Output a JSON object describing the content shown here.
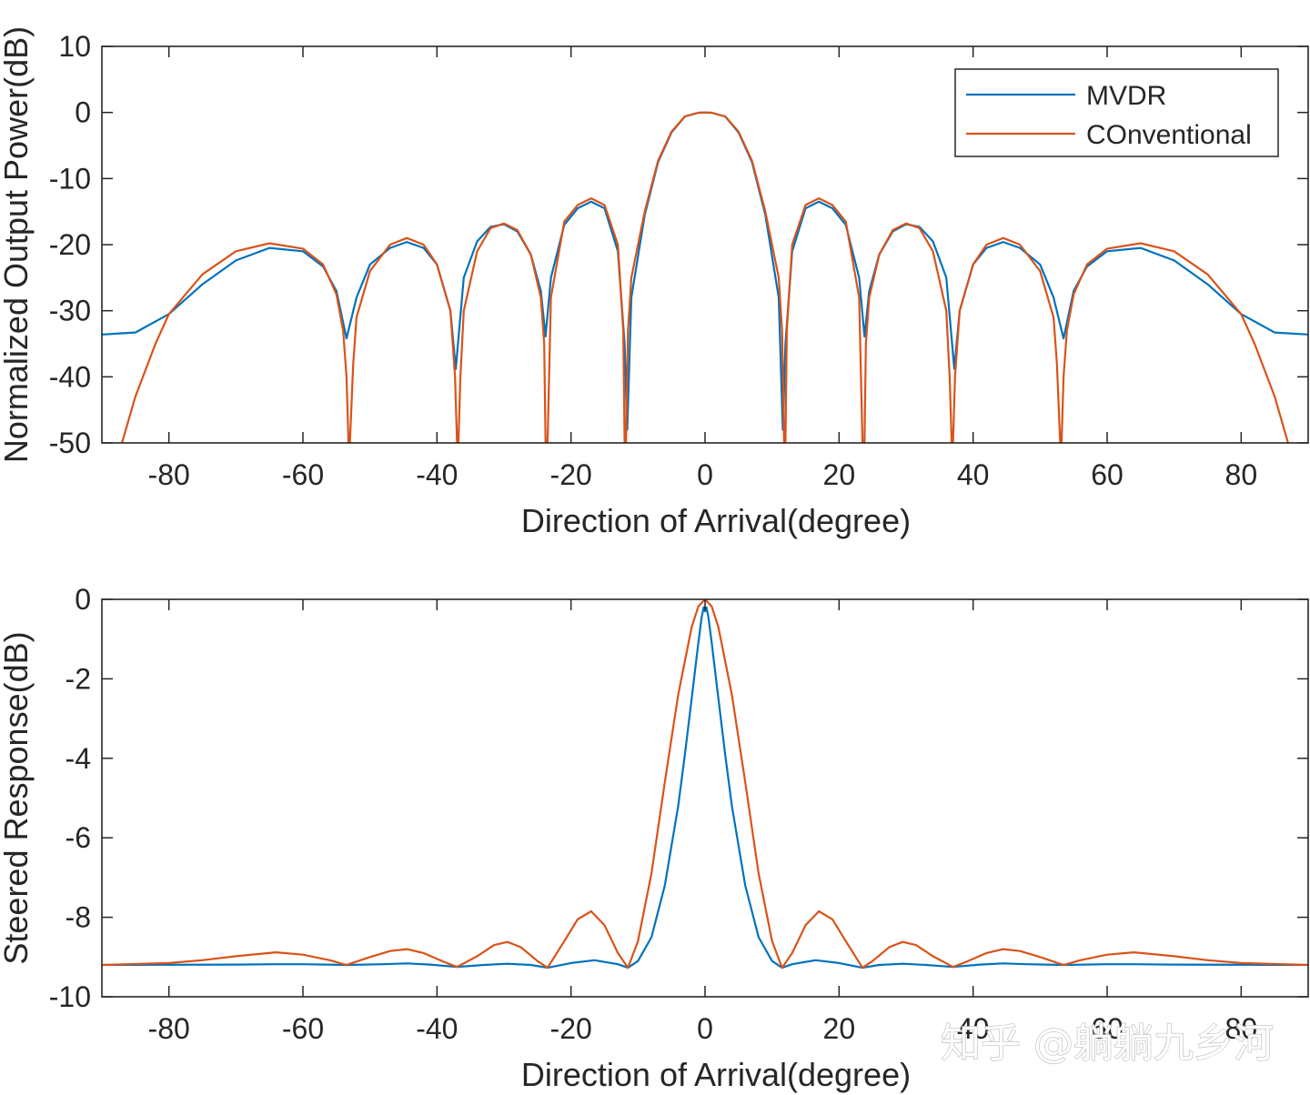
{
  "watermark": "知乎 @躺躺九乡河",
  "colors": {
    "mvdr": "#0072BD",
    "conventional": "#D95319",
    "axes": "#262626"
  },
  "chart_data": [
    {
      "type": "line",
      "xlabel": "Direction of Arrival(degree)",
      "ylabel": "Normalized Output Power(dB)",
      "xlim": [
        -90,
        90
      ],
      "ylim": [
        -50,
        10
      ],
      "xticks": [
        -80,
        -60,
        -40,
        -20,
        0,
        20,
        40,
        60,
        80
      ],
      "yticks": [
        10,
        0,
        -10,
        -20,
        -30,
        -40,
        -50
      ],
      "legend": {
        "position": "top-right",
        "entries": [
          "MVDR",
          "COnventional"
        ]
      },
      "series": [
        {
          "name": "MVDR",
          "x": [
            -90,
            -85,
            -80,
            -75,
            -70,
            -65,
            -60,
            -57,
            -55,
            -53.5,
            -52,
            -50,
            -47,
            -44.5,
            -42,
            -40,
            -38,
            -37.2,
            -36,
            -34,
            -32,
            -30,
            -28,
            -26,
            -24.5,
            -23.8,
            -23,
            -21,
            -19,
            -17,
            -15,
            -13,
            -12,
            -11.6,
            -11,
            -9,
            -7,
            -5,
            -3,
            -1,
            0,
            1,
            3,
            5,
            7,
            9,
            11,
            11.6,
            12,
            13,
            15,
            17,
            19,
            21,
            23,
            23.8,
            24.5,
            26,
            28,
            30,
            32,
            34,
            36,
            37.2,
            38,
            40,
            42,
            44.5,
            47,
            50,
            52,
            53.5,
            55,
            57,
            60,
            65,
            70,
            75,
            80,
            85,
            90
          ],
          "y": [
            -33.6,
            -33.3,
            -30.5,
            -26,
            -22.4,
            -20.5,
            -21,
            -23.3,
            -27,
            -34.2,
            -28,
            -23,
            -20.5,
            -19.6,
            -20.5,
            -23,
            -30,
            -38.8,
            -25,
            -19.5,
            -17.3,
            -16.9,
            -18,
            -21.5,
            -27,
            -33.9,
            -25,
            -17,
            -14.5,
            -13.5,
            -14.5,
            -21,
            -35,
            -48,
            -28,
            -15.5,
            -7.5,
            -3,
            -0.6,
            -0.05,
            0,
            -0.05,
            -0.6,
            -3,
            -7.5,
            -15.5,
            -28,
            -48,
            -35,
            -21,
            -14.5,
            -13.5,
            -14.5,
            -17,
            -25,
            -33.9,
            -27,
            -21.5,
            -18,
            -16.9,
            -17.3,
            -19.5,
            -25,
            -38.8,
            -30,
            -23,
            -20.5,
            -19.6,
            -20.5,
            -23,
            -28,
            -34.2,
            -27,
            -23.3,
            -21,
            -20.5,
            -22.4,
            -26,
            -30.5,
            -33.3,
            -33.6
          ]
        },
        {
          "name": "COnventional",
          "x": [
            -87,
            -85,
            -82,
            -80,
            -75,
            -70,
            -65,
            -60,
            -57,
            -55,
            -54,
            -53.5,
            -53.2,
            -53,
            -52.5,
            -52,
            -50,
            -47,
            -44.5,
            -42,
            -40,
            -38,
            -37.3,
            -37,
            -36.8,
            -36.5,
            -36,
            -34,
            -32,
            -30,
            -28,
            -26,
            -24.5,
            -24,
            -23.8,
            -23.5,
            -23,
            -21,
            -19,
            -17,
            -15,
            -13,
            -12.2,
            -12,
            -11.8,
            -11.5,
            -11,
            -9,
            -7,
            -5,
            -3,
            -1,
            0,
            1,
            3,
            5,
            7,
            9,
            11,
            11.5,
            11.8,
            12,
            12.2,
            13,
            15,
            17,
            19,
            21,
            23,
            23.5,
            23.8,
            24,
            24.5,
            26,
            28,
            30,
            32,
            34,
            36,
            36.5,
            36.8,
            37,
            37.3,
            38,
            40,
            42,
            44.5,
            47,
            50,
            52,
            52.5,
            53,
            53.2,
            53.5,
            54,
            55,
            57,
            60,
            65,
            70,
            75,
            80,
            82,
            85,
            87
          ],
          "y": [
            -50,
            -43,
            -35,
            -30.5,
            -24.5,
            -21,
            -19.8,
            -20.6,
            -23,
            -27.5,
            -33,
            -40,
            -50,
            -50,
            -38,
            -31,
            -24,
            -20,
            -19,
            -20,
            -23,
            -30,
            -40,
            -50,
            -50,
            -40,
            -30,
            -21,
            -17.5,
            -16.8,
            -17.8,
            -21.5,
            -28,
            -35,
            -50,
            -50,
            -28,
            -16.5,
            -14,
            -13,
            -14,
            -20,
            -33,
            -50,
            -50,
            -33,
            -25,
            -15,
            -7.3,
            -2.9,
            -0.6,
            -0.05,
            0,
            -0.05,
            -0.6,
            -2.9,
            -7.3,
            -15,
            -25,
            -33,
            -50,
            -50,
            -33,
            -20,
            -14,
            -13,
            -14,
            -16.5,
            -28,
            -50,
            -50,
            -35,
            -28,
            -21.5,
            -17.8,
            -16.8,
            -17.5,
            -21,
            -30,
            -40,
            -50,
            -50,
            -40,
            -30,
            -23,
            -20,
            -19,
            -20,
            -24,
            -31,
            -38,
            -50,
            -50,
            -40,
            -33,
            -27.5,
            -23,
            -20.6,
            -19.8,
            -21,
            -24.5,
            -30.5,
            -35,
            -43,
            -50
          ]
        }
      ]
    },
    {
      "type": "line",
      "xlabel": "Direction of Arrival(degree)",
      "ylabel": "Steered Response(dB)",
      "xlim": [
        -90,
        90
      ],
      "ylim": [
        -10,
        0
      ],
      "xticks": [
        -80,
        -60,
        -40,
        -20,
        0,
        20,
        40,
        60,
        80
      ],
      "yticks": [
        0,
        -2,
        -4,
        -6,
        -8,
        -10
      ],
      "series": [
        {
          "name": "MVDR",
          "x": [
            -90,
            -70,
            -64,
            -60,
            -53.5,
            -48,
            -44.5,
            -41,
            -37,
            -33,
            -29.5,
            -26,
            -23.5,
            -20,
            -16.5,
            -13,
            -11.5,
            -10,
            -8,
            -6,
            -4,
            -3,
            -2,
            -1,
            -0.5,
            -0.2,
            0,
            0.2,
            0.5,
            1,
            2,
            3,
            4,
            6,
            8,
            10,
            11.5,
            13,
            16.5,
            20,
            23.5,
            26,
            29.5,
            33,
            37,
            41,
            44.5,
            48,
            53.5,
            60,
            64,
            70,
            90
          ],
          "y": [
            -9.2,
            -9.19,
            -9.18,
            -9.18,
            -9.2,
            -9.18,
            -9.16,
            -9.19,
            -9.25,
            -9.2,
            -9.17,
            -9.2,
            -9.27,
            -9.15,
            -9.08,
            -9.18,
            -9.27,
            -9.1,
            -8.5,
            -7.2,
            -5.2,
            -3.9,
            -2.5,
            -1.1,
            -0.45,
            -0.2,
            -0.3,
            -0.2,
            -0.45,
            -1.1,
            -2.5,
            -3.9,
            -5.2,
            -7.2,
            -8.5,
            -9.1,
            -9.27,
            -9.18,
            -9.08,
            -9.15,
            -9.27,
            -9.2,
            -9.17,
            -9.2,
            -9.25,
            -9.19,
            -9.16,
            -9.18,
            -9.2,
            -9.18,
            -9.18,
            -9.19,
            -9.2
          ]
        },
        {
          "name": "COnventional",
          "x": [
            -90,
            -80,
            -75,
            -70,
            -64,
            -60,
            -56,
            -53.5,
            -50,
            -47,
            -44.5,
            -42,
            -39,
            -37,
            -34,
            -31.5,
            -29.5,
            -27.5,
            -25,
            -23.5,
            -21,
            -19,
            -17,
            -15,
            -13,
            -11.5,
            -10,
            -8,
            -6,
            -4,
            -2,
            -1,
            0,
            1,
            2,
            4,
            6,
            8,
            10,
            11.5,
            13,
            15,
            17,
            19,
            21,
            23.5,
            25,
            27.5,
            29.5,
            31.5,
            34,
            37,
            39,
            42,
            44.5,
            47,
            50,
            53.5,
            56,
            60,
            64,
            70,
            75,
            80,
            90
          ],
          "y": [
            -9.2,
            -9.15,
            -9.08,
            -8.98,
            -8.88,
            -8.94,
            -9.08,
            -9.2,
            -9.0,
            -8.85,
            -8.8,
            -8.9,
            -9.12,
            -9.25,
            -8.98,
            -8.7,
            -8.62,
            -8.75,
            -9.1,
            -9.27,
            -8.6,
            -8.05,
            -7.85,
            -8.2,
            -8.9,
            -9.27,
            -8.6,
            -6.9,
            -4.6,
            -2.4,
            -0.7,
            -0.18,
            0,
            -0.18,
            -0.7,
            -2.4,
            -4.6,
            -6.9,
            -8.6,
            -9.27,
            -8.9,
            -8.2,
            -7.85,
            -8.05,
            -8.6,
            -9.27,
            -9.1,
            -8.75,
            -8.62,
            -8.7,
            -8.98,
            -9.25,
            -9.12,
            -8.9,
            -8.8,
            -8.85,
            -9.0,
            -9.2,
            -9.08,
            -8.94,
            -8.88,
            -8.98,
            -9.08,
            -9.15,
            -9.2
          ]
        }
      ]
    }
  ]
}
